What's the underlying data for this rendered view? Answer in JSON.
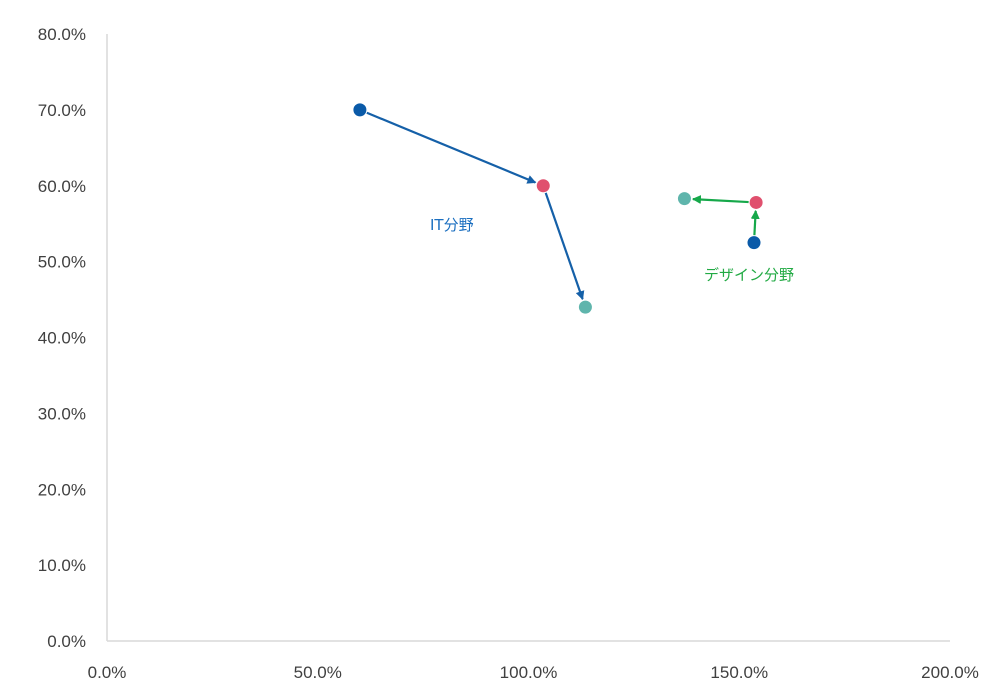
{
  "chart_data": {
    "type": "scatter",
    "xlim": [
      0,
      200
    ],
    "ylim": [
      0,
      80
    ],
    "x_ticks": [
      {
        "value": 0,
        "label": "0.0%"
      },
      {
        "value": 50,
        "label": "50.0%"
      },
      {
        "value": 100,
        "label": "100.0%"
      },
      {
        "value": 150,
        "label": "150.0%"
      },
      {
        "value": 200,
        "label": "200.0%"
      }
    ],
    "y_ticks": [
      {
        "value": 0,
        "label": "0.0%"
      },
      {
        "value": 10,
        "label": "10.0%"
      },
      {
        "value": 20,
        "label": "20.0%"
      },
      {
        "value": 30,
        "label": "30.0%"
      },
      {
        "value": 40,
        "label": "40.0%"
      },
      {
        "value": 50,
        "label": "50.0%"
      },
      {
        "value": 60,
        "label": "60.0%"
      },
      {
        "value": 70,
        "label": "70.0%"
      },
      {
        "value": 80,
        "label": "80.0%"
      }
    ],
    "grid": false,
    "series": [
      {
        "label": "IT分野",
        "arrow_color": "#1560a8",
        "label_color": "#1b6fc0",
        "points": [
          {
            "x": 60,
            "y": 70,
            "color": "#0a5aa8"
          },
          {
            "x": 103.5,
            "y": 60,
            "color": "#e0506e"
          },
          {
            "x": 113.5,
            "y": 44,
            "color": "#5fb5ac"
          }
        ]
      },
      {
        "label": "デザイン分野",
        "arrow_color": "#16a84a",
        "label_color": "#22aa44",
        "points": [
          {
            "x": 153.5,
            "y": 52.5,
            "color": "#0a5aa8"
          },
          {
            "x": 154,
            "y": 57.8,
            "color": "#e0506e"
          },
          {
            "x": 137,
            "y": 58.3,
            "color": "#5fb5ac"
          }
        ]
      }
    ]
  }
}
